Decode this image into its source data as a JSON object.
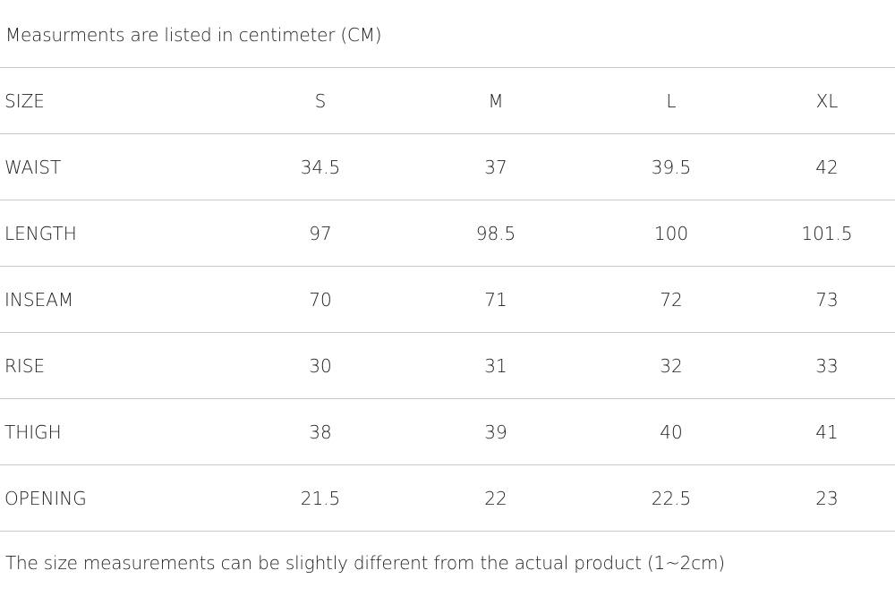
{
  "top_note": "Measurments are listed in centimeter (CM)",
  "bottom_note": "The size measurements can be slightly different from the actual product (1~2cm)",
  "table": {
    "header_label": "SIZE",
    "columns": [
      "S",
      "M",
      "L",
      "XL"
    ],
    "rows": [
      {
        "label": "WAIST",
        "values": [
          "34.5",
          "37",
          "39.5",
          "42"
        ]
      },
      {
        "label": "LENGTH",
        "values": [
          "97",
          "98.5",
          "100",
          "101.5"
        ]
      },
      {
        "label": "INSEAM",
        "values": [
          "70",
          "71",
          "72",
          "73"
        ]
      },
      {
        "label": "RISE",
        "values": [
          "30",
          "31",
          "32",
          "33"
        ]
      },
      {
        "label": "THIGH",
        "values": [
          "38",
          "39",
          "40",
          "41"
        ]
      },
      {
        "label": "OPENING",
        "values": [
          "21.5",
          "22",
          "22.5",
          "23"
        ]
      }
    ]
  }
}
